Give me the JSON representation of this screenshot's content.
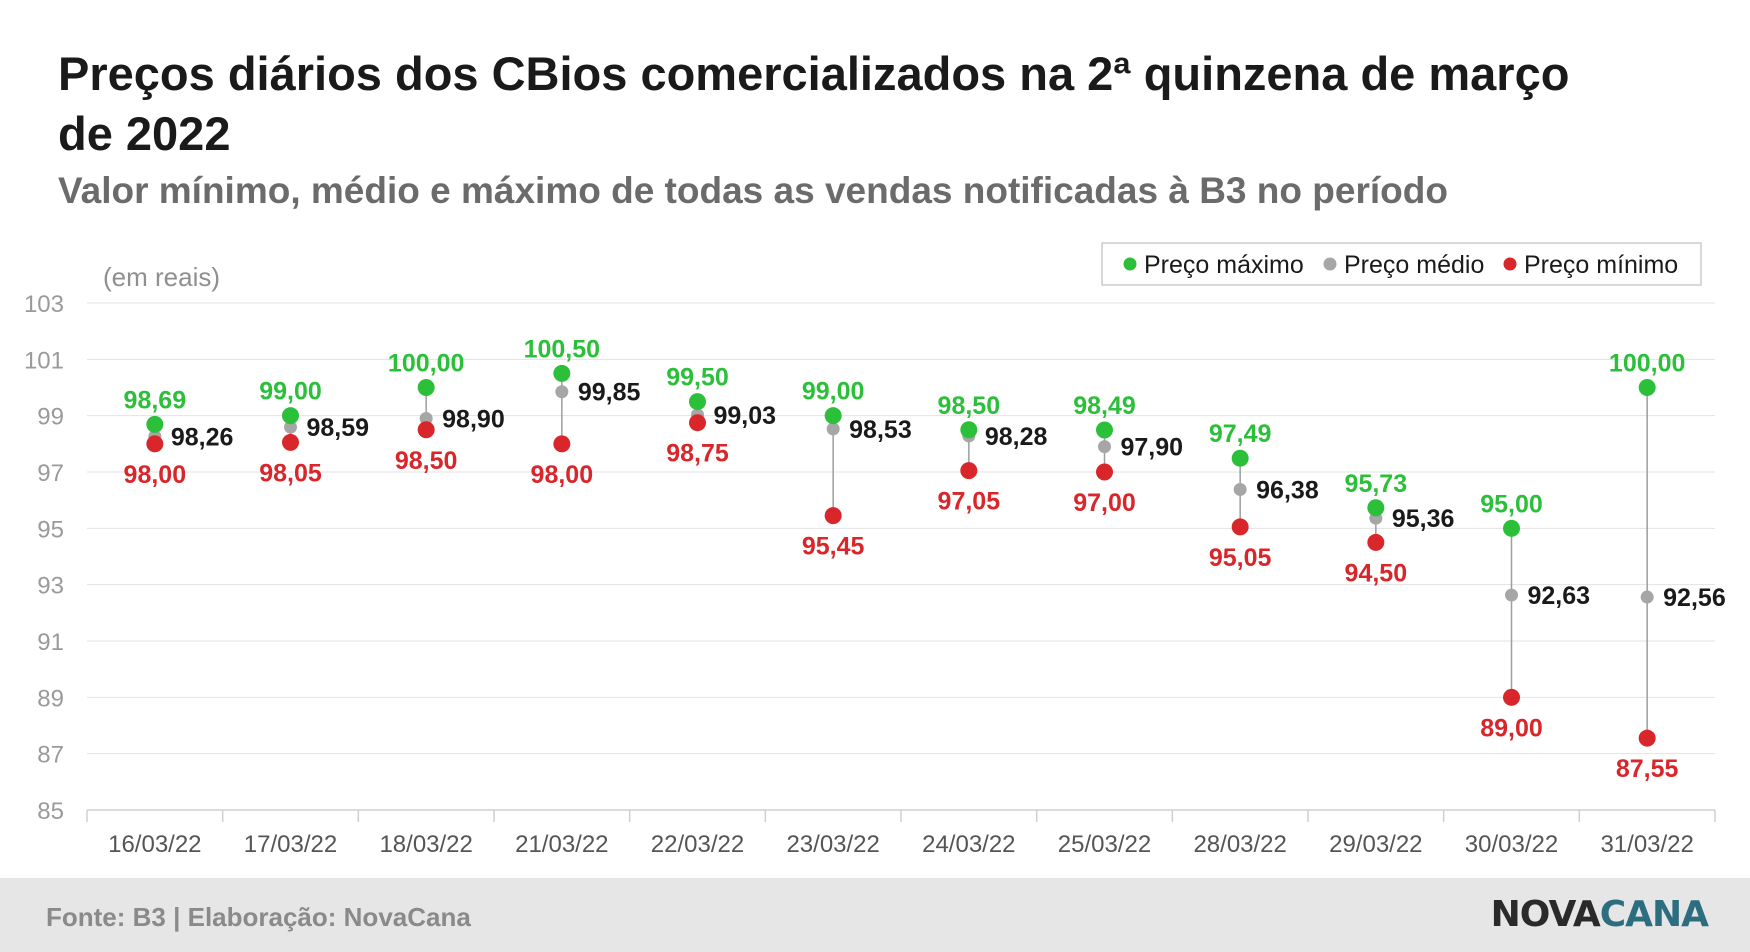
{
  "header": {
    "title": "Preços diários dos CBios comercializados na 2ª quinzena de março de 2022",
    "subtitle": "Valor mínimo, médio e máximo de todas as vendas notificadas à B3 no período"
  },
  "footer": {
    "source": "Fonte: B3 | Elaboração: NovaCana",
    "logo_part1": "NOVA",
    "logo_part2": "CANA"
  },
  "chart_data": {
    "type": "scatter",
    "unit_note": "(em reais)",
    "categories": [
      "16/03/22",
      "17/03/22",
      "18/03/22",
      "21/03/22",
      "22/03/22",
      "23/03/22",
      "24/03/22",
      "25/03/22",
      "28/03/22",
      "29/03/22",
      "30/03/22",
      "31/03/22"
    ],
    "ylim": [
      85,
      103
    ],
    "yticks": [
      85,
      87,
      89,
      91,
      93,
      95,
      97,
      99,
      101,
      103
    ],
    "grid": true,
    "legend_position": "top-right",
    "series": [
      {
        "name": "Preço máximo",
        "color": "#2cbf3a",
        "values": [
          98.69,
          99.0,
          100.0,
          100.5,
          99.5,
          99.0,
          98.5,
          98.49,
          97.49,
          95.73,
          95.0,
          100.0
        ],
        "labels": [
          "98,69",
          "99,00",
          "100,00",
          "100,50",
          "99,50",
          "99,00",
          "98,50",
          "98,49",
          "97,49",
          "95,73",
          "95,00",
          "100,00"
        ]
      },
      {
        "name": "Preço médio",
        "color": "#a6a6a6",
        "label_color": "#1a1a1a",
        "values": [
          98.26,
          98.59,
          98.9,
          99.85,
          99.03,
          98.53,
          98.28,
          97.9,
          96.38,
          95.36,
          92.63,
          92.56
        ],
        "labels": [
          "98,26",
          "98,59",
          "98,90",
          "99,85",
          "99,03",
          "98,53",
          "98,28",
          "97,90",
          "96,38",
          "95,36",
          "92,63",
          "92,56"
        ]
      },
      {
        "name": "Preço mínimo",
        "color": "#d8262b",
        "values": [
          98.0,
          98.05,
          98.5,
          98.0,
          98.75,
          95.45,
          97.05,
          97.0,
          95.05,
          94.5,
          89.0,
          87.55
        ],
        "labels": [
          "98,00",
          "98,05",
          "98,50",
          "98,00",
          "98,75",
          "95,45",
          "97,05",
          "97,00",
          "95,05",
          "94,50",
          "89,00",
          "87,55"
        ]
      }
    ]
  }
}
